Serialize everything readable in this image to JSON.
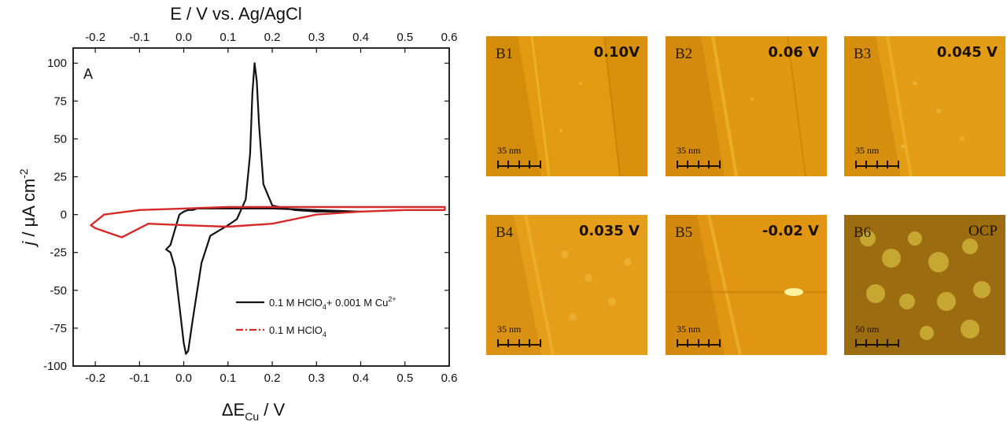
{
  "chart_data": {
    "type": "line",
    "panel_label": "A",
    "top_axis_label": "E / V vs. Ag/AgCl",
    "xlabel_main": "ΔE",
    "xlabel_sub": "Cu",
    "xlabel_unit": " / V",
    "ylabel_italic": "j",
    "ylabel_mid": " / μA cm",
    "ylabel_sup": "-2",
    "xlim": [
      -0.25,
      0.6
    ],
    "ylim": [
      -100,
      110
    ],
    "x_ticks": [
      "-0.2",
      "-0.1",
      "0.0",
      "0.1",
      "0.2",
      "0.3",
      "0.4",
      "0.5",
      "0.6"
    ],
    "x_tick_values": [
      -0.2,
      -0.1,
      0.0,
      0.1,
      0.2,
      0.3,
      0.4,
      0.5,
      0.6
    ],
    "top_ticks": [
      "-0.2",
      "-0.1",
      "0.0",
      "0.1",
      "0.2",
      "0.3",
      "0.4",
      "0.5",
      "0.6"
    ],
    "top_tick_values": [
      -0.2,
      -0.1,
      0.0,
      0.1,
      0.2,
      0.3,
      0.4,
      0.5,
      0.6
    ],
    "y_ticks": [
      "100",
      "75",
      "50",
      "25",
      "0",
      "-25",
      "-50",
      "-75",
      "-100"
    ],
    "y_tick_values": [
      100,
      75,
      50,
      25,
      0,
      -25,
      -50,
      -75,
      -100
    ],
    "series": [
      {
        "name": "0.1 M HClO4 + 0.001 M Cu2+",
        "legend_a": "0.1 M HClO",
        "legend_sub": "4",
        "legend_b": "+ 0.001 M Cu",
        "legend_sup": "2+",
        "color": "#111111",
        "style": "solid",
        "x": [
          -0.04,
          -0.03,
          -0.02,
          -0.01,
          0.0,
          0.01,
          0.02,
          0.03,
          0.05,
          0.1,
          0.15,
          0.2,
          0.3,
          0.4,
          0.4,
          0.3,
          0.25,
          0.2,
          0.18,
          0.17,
          0.165,
          0.16,
          0.155,
          0.15,
          0.14,
          0.12,
          0.1,
          0.06,
          0.04,
          0.02,
          0.01,
          0.005,
          0.0,
          -0.01,
          -0.02,
          -0.03,
          -0.04
        ],
        "y": [
          -23,
          -20,
          -10,
          0,
          2,
          3,
          3,
          4,
          4,
          4,
          4,
          4,
          3,
          2,
          2,
          2,
          3,
          6,
          20,
          60,
          88,
          100,
          80,
          40,
          10,
          -3,
          -7,
          -14,
          -32,
          -70,
          -90,
          -92,
          -85,
          -60,
          -35,
          -25,
          -23
        ]
      },
      {
        "name": "0.1 M HClO4",
        "legend_a": "0.1 M HClO",
        "legend_sub": "4",
        "legend_b": "",
        "legend_sup": "",
        "color": "#d42a2a",
        "style": "dashdot",
        "x": [
          -0.21,
          -0.18,
          -0.1,
          0.0,
          0.1,
          0.2,
          0.3,
          0.4,
          0.5,
          0.59,
          0.59,
          0.5,
          0.4,
          0.3,
          0.2,
          0.1,
          0.0,
          -0.08,
          -0.12,
          -0.14,
          -0.17,
          -0.2,
          -0.21
        ],
        "y": [
          -7,
          0,
          3,
          4,
          5,
          5,
          5,
          5,
          5,
          5,
          3,
          3,
          2,
          0,
          -6,
          -8,
          -7,
          -6,
          -12,
          -15,
          -12,
          -9,
          -7
        ]
      }
    ]
  },
  "afm_panels": [
    {
      "id": "B1",
      "potential": "0.10V",
      "scale": "35 nm",
      "bold": true
    },
    {
      "id": "B2",
      "potential": "0.06 V",
      "scale": "35 nm",
      "bold": true
    },
    {
      "id": "B3",
      "potential": "0.045 V",
      "scale": "35 nm",
      "bold": true
    },
    {
      "id": "B4",
      "potential": "0.035 V",
      "scale": "35 nm",
      "bold": true
    },
    {
      "id": "B5",
      "potential": "-0.02 V",
      "scale": "35 nm",
      "bold": true
    },
    {
      "id": "B6",
      "potential": "OCP",
      "scale": "50 nm",
      "bold": false
    }
  ],
  "colors": {
    "afm_base": "#e0960a",
    "afm_light": "#f0b42a",
    "afm_dark": "#b86e06",
    "ocp_base": "#9c6c10",
    "ocp_bright": "#d8c040"
  }
}
